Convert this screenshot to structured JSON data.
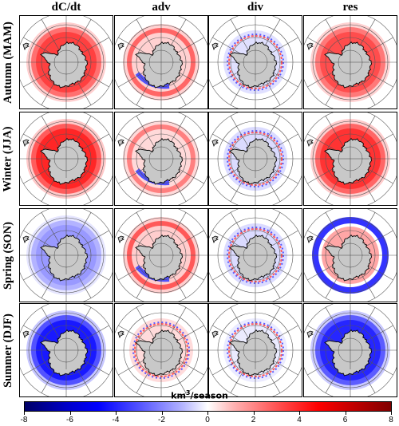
{
  "columns": [
    "dC/dt",
    "adv",
    "div",
    "res"
  ],
  "rows": [
    "Autumn (MAM)",
    "Winter (JJA)",
    "Spring (SON)",
    "Summer (DJF)"
  ],
  "colorbar": {
    "title_prefix": "km",
    "title_sup": "3",
    "title_suffix": "/season",
    "ticks": [
      "-8",
      "-6",
      "-4",
      "-2",
      "0",
      "2",
      "4",
      "6",
      "8"
    ],
    "range": [
      -8,
      8
    ],
    "colors": {
      "negative": "#0000ff",
      "neutral": "#ffffff",
      "positive": "#ff0000"
    }
  },
  "panels": [
    {
      "row": 0,
      "col": 0,
      "pattern": "ring",
      "tone": "red",
      "strength": 0.75
    },
    {
      "row": 0,
      "col": 1,
      "pattern": "mixed",
      "tone": "red",
      "strength": 0.6
    },
    {
      "row": 0,
      "col": 2,
      "pattern": "coastal",
      "tone": "mixed",
      "strength": 0.3
    },
    {
      "row": 0,
      "col": 3,
      "pattern": "ring",
      "tone": "red",
      "strength": 0.7
    },
    {
      "row": 1,
      "col": 0,
      "pattern": "ring",
      "tone": "red",
      "strength": 0.85
    },
    {
      "row": 1,
      "col": 1,
      "pattern": "mixed",
      "tone": "red",
      "strength": 0.5
    },
    {
      "row": 1,
      "col": 2,
      "pattern": "coastal",
      "tone": "mixed",
      "strength": 0.35
    },
    {
      "row": 1,
      "col": 3,
      "pattern": "ring",
      "tone": "red",
      "strength": 0.8
    },
    {
      "row": 2,
      "col": 0,
      "pattern": "ring",
      "tone": "blue",
      "strength": 0.4
    },
    {
      "row": 2,
      "col": 1,
      "pattern": "mixed",
      "tone": "red",
      "strength": 0.65
    },
    {
      "row": 2,
      "col": 2,
      "pattern": "coastal",
      "tone": "mixed",
      "strength": 0.35
    },
    {
      "row": 2,
      "col": 3,
      "pattern": "dipole",
      "tone": "blue",
      "strength": 0.8
    },
    {
      "row": 3,
      "col": 0,
      "pattern": "ring",
      "tone": "blue",
      "strength": 0.9
    },
    {
      "row": 3,
      "col": 1,
      "pattern": "coastal",
      "tone": "red",
      "strength": 0.35
    },
    {
      "row": 3,
      "col": 2,
      "pattern": "coastal",
      "tone": "blue",
      "strength": 0.2
    },
    {
      "row": 3,
      "col": 3,
      "pattern": "ring",
      "tone": "blue",
      "strength": 0.85
    }
  ]
}
